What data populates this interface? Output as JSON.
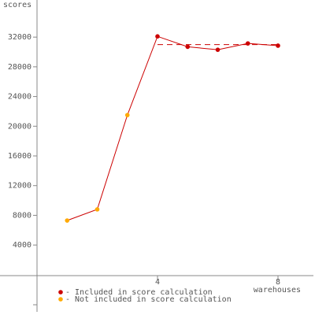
{
  "chart_data": {
    "type": "line",
    "y_label": "scores",
    "x_label": "warehouses",
    "x": [
      1,
      2,
      3,
      4,
      5,
      6,
      7,
      8
    ],
    "values": [
      7300,
      8800,
      21500,
      32100,
      30700,
      30300,
      31150,
      30850
    ],
    "included": [
      false,
      false,
      false,
      true,
      true,
      true,
      true,
      true
    ],
    "line_color": "#cc0000",
    "score_line": {
      "value": 31000,
      "from": 4,
      "to": 8
    },
    "legend": [
      {
        "label": "- Included in score calculation",
        "color": "#cc0000"
      },
      {
        "label": "- Not included in score calculation",
        "color": "#ffaa00"
      }
    ],
    "xlim": [
      0,
      9.15
    ],
    "xticks": [
      4,
      8
    ],
    "ylim": [
      -5000,
      37000
    ],
    "yticks": [
      4000,
      8000,
      12000,
      16000,
      20000,
      24000,
      28000,
      32000
    ]
  }
}
